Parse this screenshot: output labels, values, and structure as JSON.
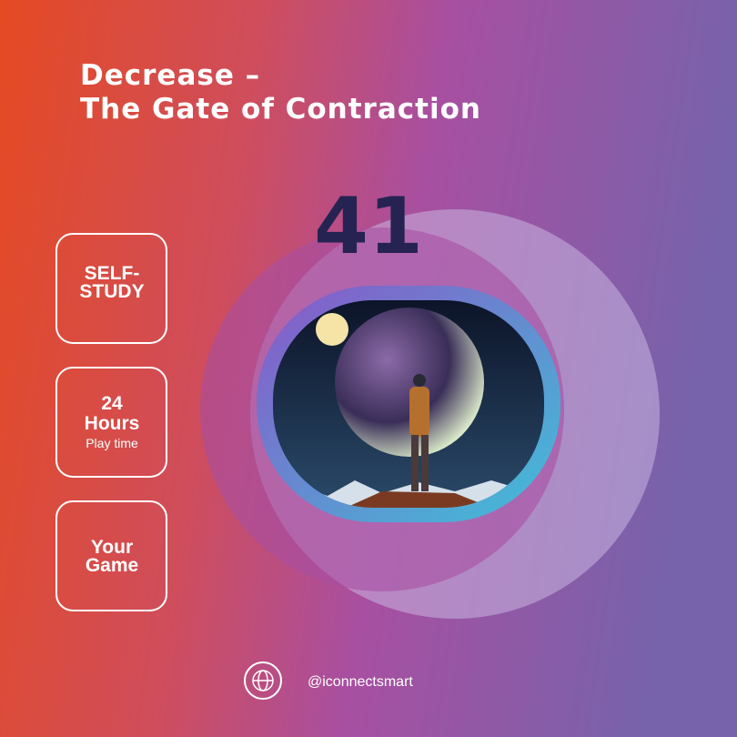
{
  "header": {
    "title_line1": "Decrease –",
    "title_line2": "The Gate of Contraction"
  },
  "number": "41",
  "cards": [
    {
      "lines": [
        "SELF-",
        "STUDY"
      ]
    },
    {
      "lines": [
        "24",
        "Hours"
      ],
      "caption": "Play time"
    },
    {
      "lines": [
        "Your",
        "Game"
      ]
    }
  ],
  "footer": {
    "handle": "@iconnectsmart"
  }
}
